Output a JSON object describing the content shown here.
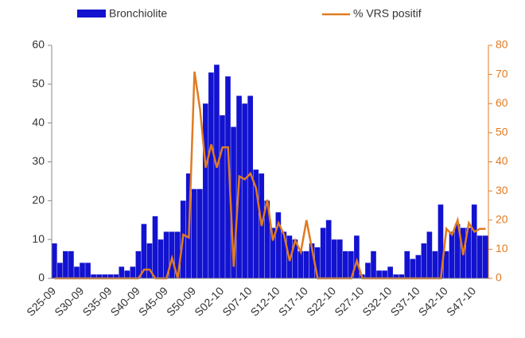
{
  "chart_data": {
    "type": "bar_line",
    "categories": [
      "S25-09",
      null,
      null,
      null,
      null,
      "S30-09",
      null,
      null,
      null,
      null,
      "S35-09",
      null,
      null,
      null,
      null,
      "S40-09",
      null,
      null,
      null,
      null,
      "S45-09",
      null,
      null,
      null,
      null,
      "S50-09",
      null,
      null,
      null,
      null,
      "S02-10",
      null,
      null,
      null,
      null,
      "S07-10",
      null,
      null,
      null,
      null,
      "S12-10",
      null,
      null,
      null,
      null,
      "S17-10",
      null,
      null,
      null,
      null,
      "S22-10",
      null,
      null,
      null,
      null,
      "S27-10",
      null,
      null,
      null,
      null,
      "S32-10",
      null,
      null,
      null,
      null,
      "S37-10",
      null,
      null,
      null,
      null,
      "S42-10",
      null,
      null,
      null,
      null,
      "S47-10",
      null,
      null
    ],
    "series": [
      {
        "name": "Bronchiolite",
        "color": "#1212d0",
        "type": "bar",
        "values": [
          9,
          4,
          7,
          7,
          3,
          4,
          4,
          1,
          1,
          1,
          1,
          1,
          3,
          2,
          3,
          7,
          14,
          9,
          16,
          10,
          12,
          12,
          12,
          20,
          27,
          23,
          23,
          45,
          53,
          55,
          42,
          52,
          39,
          47,
          45,
          47,
          28,
          27,
          20,
          13,
          17,
          12,
          11,
          10,
          7,
          7,
          9,
          8,
          13,
          15,
          10,
          10,
          7,
          7,
          11,
          1,
          4,
          7,
          2,
          2,
          3,
          1,
          1,
          7,
          5,
          6,
          9,
          12,
          7,
          19,
          7,
          12,
          14,
          13,
          13,
          19,
          11,
          11
        ]
      },
      {
        "name": "% VRS positif",
        "color": "#e07b22",
        "type": "line",
        "axis": "y2",
        "values": [
          0,
          0,
          0,
          0,
          0,
          0,
          0,
          0,
          0,
          0,
          0,
          0,
          0,
          0,
          0,
          0,
          3,
          3,
          0,
          0,
          0,
          7,
          0,
          15,
          14,
          71,
          58,
          38,
          46,
          38,
          45,
          45,
          4,
          35,
          34,
          36,
          31,
          18,
          27,
          13,
          19,
          15,
          6,
          13,
          9,
          20,
          10,
          0,
          0,
          0,
          0,
          0,
          0,
          0,
          6,
          0,
          0,
          0,
          0,
          0,
          0,
          0,
          0,
          0,
          0,
          0,
          0,
          0,
          0,
          0,
          17,
          15,
          20,
          8,
          19,
          16,
          17,
          17
        ]
      }
    ],
    "ylim": [
      0,
      60
    ],
    "yticks": [
      0,
      10,
      20,
      30,
      40,
      50,
      60
    ],
    "y2lim": [
      0,
      80
    ],
    "y2ticks": [
      0,
      10,
      20,
      30,
      40,
      50,
      60,
      70,
      80
    ]
  }
}
